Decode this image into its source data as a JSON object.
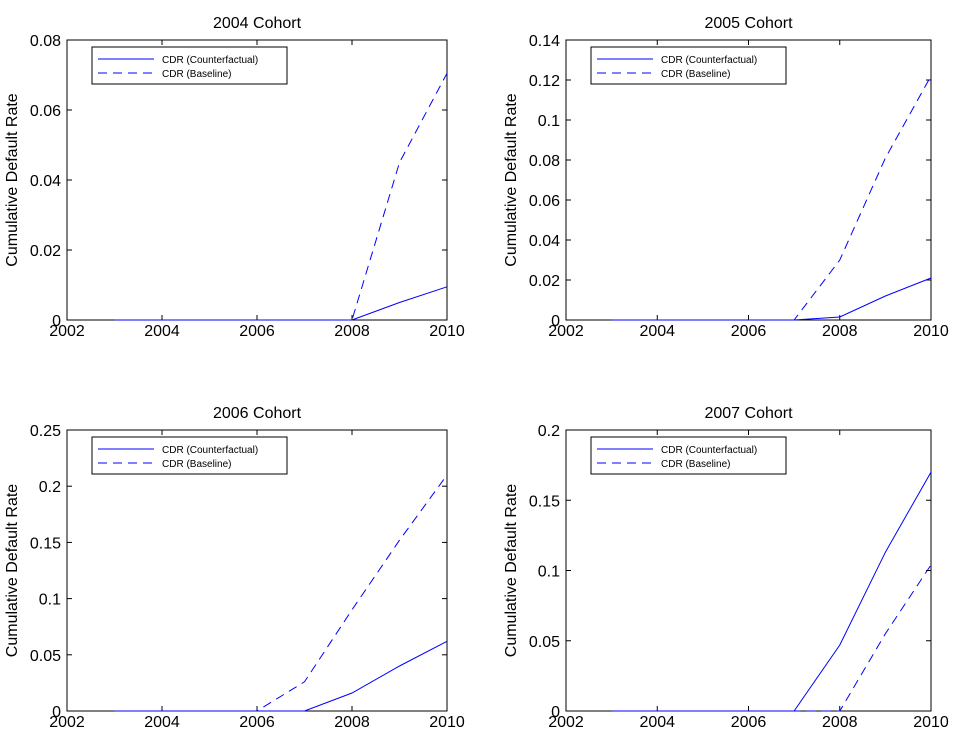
{
  "chart_data": [
    {
      "type": "line",
      "title": "2004 Cohort",
      "xlabel": "",
      "ylabel": "Cumulative Default Rate",
      "xlim": [
        2002,
        2010
      ],
      "ylim": [
        0,
        0.08
      ],
      "xticks": [
        2002,
        2004,
        2006,
        2008,
        2010
      ],
      "yticks": [
        0,
        0.02,
        0.04,
        0.06,
        0.08
      ],
      "ytick_labels": [
        "0",
        "0.02",
        "0.04",
        "0.06",
        "0.08"
      ],
      "legend_position": "top-left",
      "series": [
        {
          "name": "CDR (Counterfactual)",
          "style": "solid",
          "color": "#0000ff",
          "x": [
            2003,
            2004,
            2005,
            2006,
            2007,
            2008,
            2009,
            2010
          ],
          "y": [
            0,
            0,
            0,
            0,
            0,
            0,
            0.005,
            0.0095
          ]
        },
        {
          "name": "CDR (Baseline)",
          "style": "dashed",
          "color": "#0000ff",
          "x": [
            2003,
            2004,
            2005,
            2006,
            2007,
            2008,
            2009,
            2010
          ],
          "y": [
            0,
            0,
            0,
            0,
            0,
            0,
            0.045,
            0.0705
          ]
        }
      ]
    },
    {
      "type": "line",
      "title": "2005 Cohort",
      "xlabel": "",
      "ylabel": "Cumulative Default Rate",
      "xlim": [
        2002,
        2010
      ],
      "ylim": [
        0,
        0.14
      ],
      "xticks": [
        2002,
        2004,
        2006,
        2008,
        2010
      ],
      "yticks": [
        0,
        0.02,
        0.04,
        0.06,
        0.08,
        0.1,
        0.12,
        0.14
      ],
      "ytick_labels": [
        "0",
        "0.02",
        "0.04",
        "0.06",
        "0.08",
        "0.1",
        "0.12",
        "0.14"
      ],
      "legend_position": "top-left",
      "series": [
        {
          "name": "CDR (Counterfactual)",
          "style": "solid",
          "color": "#0000ff",
          "x": [
            2003,
            2004,
            2005,
            2006,
            2007,
            2008,
            2009,
            2010
          ],
          "y": [
            0,
            0,
            0,
            0,
            0,
            0.0015,
            0.012,
            0.021
          ]
        },
        {
          "name": "CDR (Baseline)",
          "style": "dashed",
          "color": "#0000ff",
          "x": [
            2003,
            2004,
            2005,
            2006,
            2007,
            2008,
            2009,
            2010
          ],
          "y": [
            0,
            0,
            0,
            0,
            0,
            0.03,
            0.081,
            0.122
          ]
        }
      ]
    },
    {
      "type": "line",
      "title": "2006 Cohort",
      "xlabel": "",
      "ylabel": "Cumulative Default Rate",
      "xlim": [
        2002,
        2010
      ],
      "ylim": [
        0,
        0.25
      ],
      "xticks": [
        2002,
        2004,
        2006,
        2008,
        2010
      ],
      "yticks": [
        0,
        0.05,
        0.1,
        0.15,
        0.2,
        0.25
      ],
      "ytick_labels": [
        "0",
        "0.05",
        "0.1",
        "0.15",
        "0.2",
        "0.25"
      ],
      "legend_position": "top-left",
      "series": [
        {
          "name": "CDR (Counterfactual)",
          "style": "solid",
          "color": "#0000ff",
          "x": [
            2003,
            2004,
            2005,
            2006,
            2007,
            2008,
            2009,
            2010
          ],
          "y": [
            0,
            0,
            0,
            0,
            0,
            0.016,
            0.04,
            0.062
          ]
        },
        {
          "name": "CDR (Baseline)",
          "style": "dashed",
          "color": "#0000ff",
          "x": [
            2003,
            2004,
            2005,
            2006,
            2007,
            2008,
            2009,
            2010
          ],
          "y": [
            0,
            0,
            0,
            0,
            0.026,
            0.09,
            0.152,
            0.21
          ]
        }
      ]
    },
    {
      "type": "line",
      "title": "2007 Cohort",
      "xlabel": "",
      "ylabel": "Cumulative Default Rate",
      "xlim": [
        2002,
        2010
      ],
      "ylim": [
        0,
        0.2
      ],
      "xticks": [
        2002,
        2004,
        2006,
        2008,
        2010
      ],
      "yticks": [
        0,
        0.05,
        0.1,
        0.15,
        0.2
      ],
      "ytick_labels": [
        "0",
        "0.05",
        "0.1",
        "0.15",
        "0.2"
      ],
      "legend_position": "top-left",
      "series": [
        {
          "name": "CDR (Counterfactual)",
          "style": "solid",
          "color": "#0000ff",
          "x": [
            2003,
            2004,
            2005,
            2006,
            2007,
            2008,
            2009,
            2010
          ],
          "y": [
            0,
            0,
            0,
            0,
            0,
            0.047,
            0.113,
            0.17
          ]
        },
        {
          "name": "CDR (Baseline)",
          "style": "dashed",
          "color": "#0000ff",
          "x": [
            2003,
            2004,
            2005,
            2006,
            2007,
            2008,
            2009,
            2010
          ],
          "y": [
            0,
            0,
            0,
            0,
            0,
            0,
            0.055,
            0.104
          ]
        }
      ]
    }
  ]
}
